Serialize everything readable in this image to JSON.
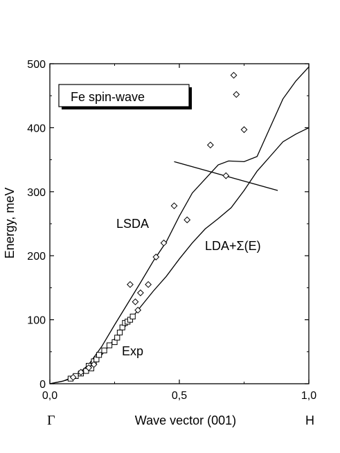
{
  "chart_data": {
    "type": "line",
    "title": "",
    "xlabel": "Wave vector (001)",
    "ylabel": "Energy, meV",
    "xlim": [
      0.0,
      1.0
    ],
    "ylim": [
      0,
      500
    ],
    "x_ticks": [
      "0,0",
      "0,5",
      "1,0"
    ],
    "y_ticks": [
      "0",
      "100",
      "200",
      "300",
      "400",
      "500"
    ],
    "x_point_labels": {
      "start": "Γ",
      "end": "H"
    },
    "legend_box": "Fe spin-wave",
    "annotations": [
      "LSDA",
      "LDA+Σ(E)",
      "Exp"
    ],
    "series": [
      {
        "name": "LSDA",
        "style": "line",
        "x": [
          0.0,
          0.05,
          0.1,
          0.15,
          0.2,
          0.25,
          0.3,
          0.35,
          0.4,
          0.45,
          0.5,
          0.55,
          0.6,
          0.65,
          0.69,
          0.75,
          0.8,
          0.85,
          0.9,
          0.95,
          1.0
        ],
        "y": [
          0,
          4,
          12,
          30,
          58,
          92,
          125,
          158,
          192,
          222,
          262,
          298,
          320,
          342,
          348,
          347,
          355,
          400,
          445,
          473,
          495
        ]
      },
      {
        "name": "LDA+Σ(E)",
        "style": "line",
        "x": [
          0.0,
          0.05,
          0.1,
          0.15,
          0.2,
          0.25,
          0.3,
          0.35,
          0.4,
          0.45,
          0.5,
          0.55,
          0.6,
          0.65,
          0.7,
          0.75,
          0.8,
          0.85,
          0.9,
          0.95,
          1.0
        ],
        "y": [
          0,
          4,
          10,
          24,
          45,
          70,
          94,
          120,
          145,
          168,
          195,
          220,
          242,
          258,
          275,
          302,
          332,
          355,
          378,
          390,
          400
        ]
      },
      {
        "name": "Exp",
        "style": "squares",
        "x": [
          0.08,
          0.1,
          0.12,
          0.14,
          0.15,
          0.16,
          0.17,
          0.18,
          0.19,
          0.21,
          0.23,
          0.25,
          0.26,
          0.27,
          0.28,
          0.29,
          0.3,
          0.31,
          0.32
        ],
        "y": [
          8,
          12,
          16,
          20,
          28,
          24,
          35,
          38,
          45,
          52,
          60,
          65,
          72,
          80,
          88,
          95,
          97,
          100,
          105
        ]
      },
      {
        "style": "diamonds",
        "x": [
          0.09,
          0.12,
          0.15,
          0.17,
          0.31,
          0.33,
          0.34,
          0.35,
          0.38,
          0.41,
          0.44,
          0.48,
          0.53,
          0.62,
          0.68,
          0.71,
          0.72,
          0.75
        ],
        "y": [
          10,
          18,
          25,
          30,
          155,
          128,
          115,
          142,
          155,
          198,
          220,
          278,
          256,
          373,
          325,
          482,
          452,
          397
        ]
      },
      {
        "style": "line",
        "x": [
          0.48,
          0.88
        ],
        "y": [
          347,
          302
        ]
      }
    ]
  }
}
